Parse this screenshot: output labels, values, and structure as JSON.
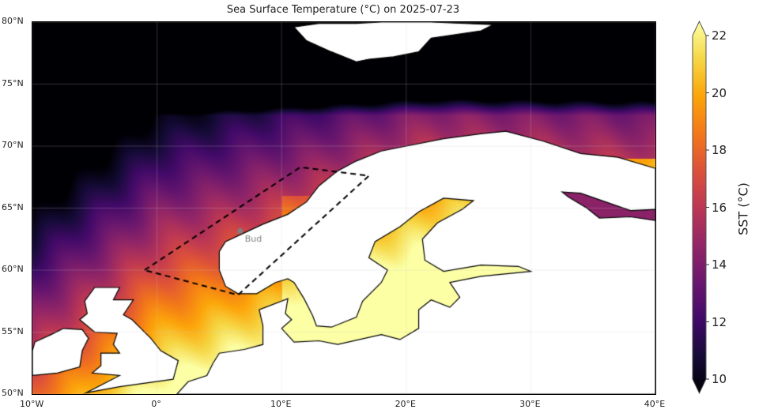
{
  "title": "Sea Surface Temperature (°C) on 2025-07-23",
  "chart_data": {
    "type": "heatmap",
    "map_extent": {
      "lon": [
        -10,
        40
      ],
      "lat": [
        50,
        80
      ]
    },
    "x_ticks": [
      {
        "value": -10,
        "label": "10°W"
      },
      {
        "value": 0,
        "label": "0°"
      },
      {
        "value": 10,
        "label": "10°E"
      },
      {
        "value": 20,
        "label": "20°E"
      },
      {
        "value": 30,
        "label": "30°E"
      },
      {
        "value": 40,
        "label": "40°E"
      }
    ],
    "y_ticks": [
      {
        "value": 50,
        "label": "50°N"
      },
      {
        "value": 55,
        "label": "55°N"
      },
      {
        "value": 60,
        "label": "60°N"
      },
      {
        "value": 65,
        "label": "65°N"
      },
      {
        "value": 70,
        "label": "70°N"
      },
      {
        "value": 75,
        "label": "75°N"
      },
      {
        "value": 80,
        "label": "80°N"
      }
    ],
    "grid": true,
    "colormap": "inferno",
    "colorbar": {
      "label": "SST (°C)",
      "range": [
        10,
        22
      ],
      "ticks": [
        10,
        12,
        14,
        16,
        18,
        20,
        22
      ],
      "extend": "both",
      "position": "right"
    },
    "region_box": [
      [
        -1,
        60
      ],
      [
        11.5,
        68.3
      ],
      [
        17,
        67.6
      ],
      [
        6.5,
        58
      ]
    ],
    "marker": {
      "label": "Bud",
      "lon": 6.8,
      "lat": 62.9,
      "color": "#808080"
    },
    "land_color": "#ffffff"
  }
}
